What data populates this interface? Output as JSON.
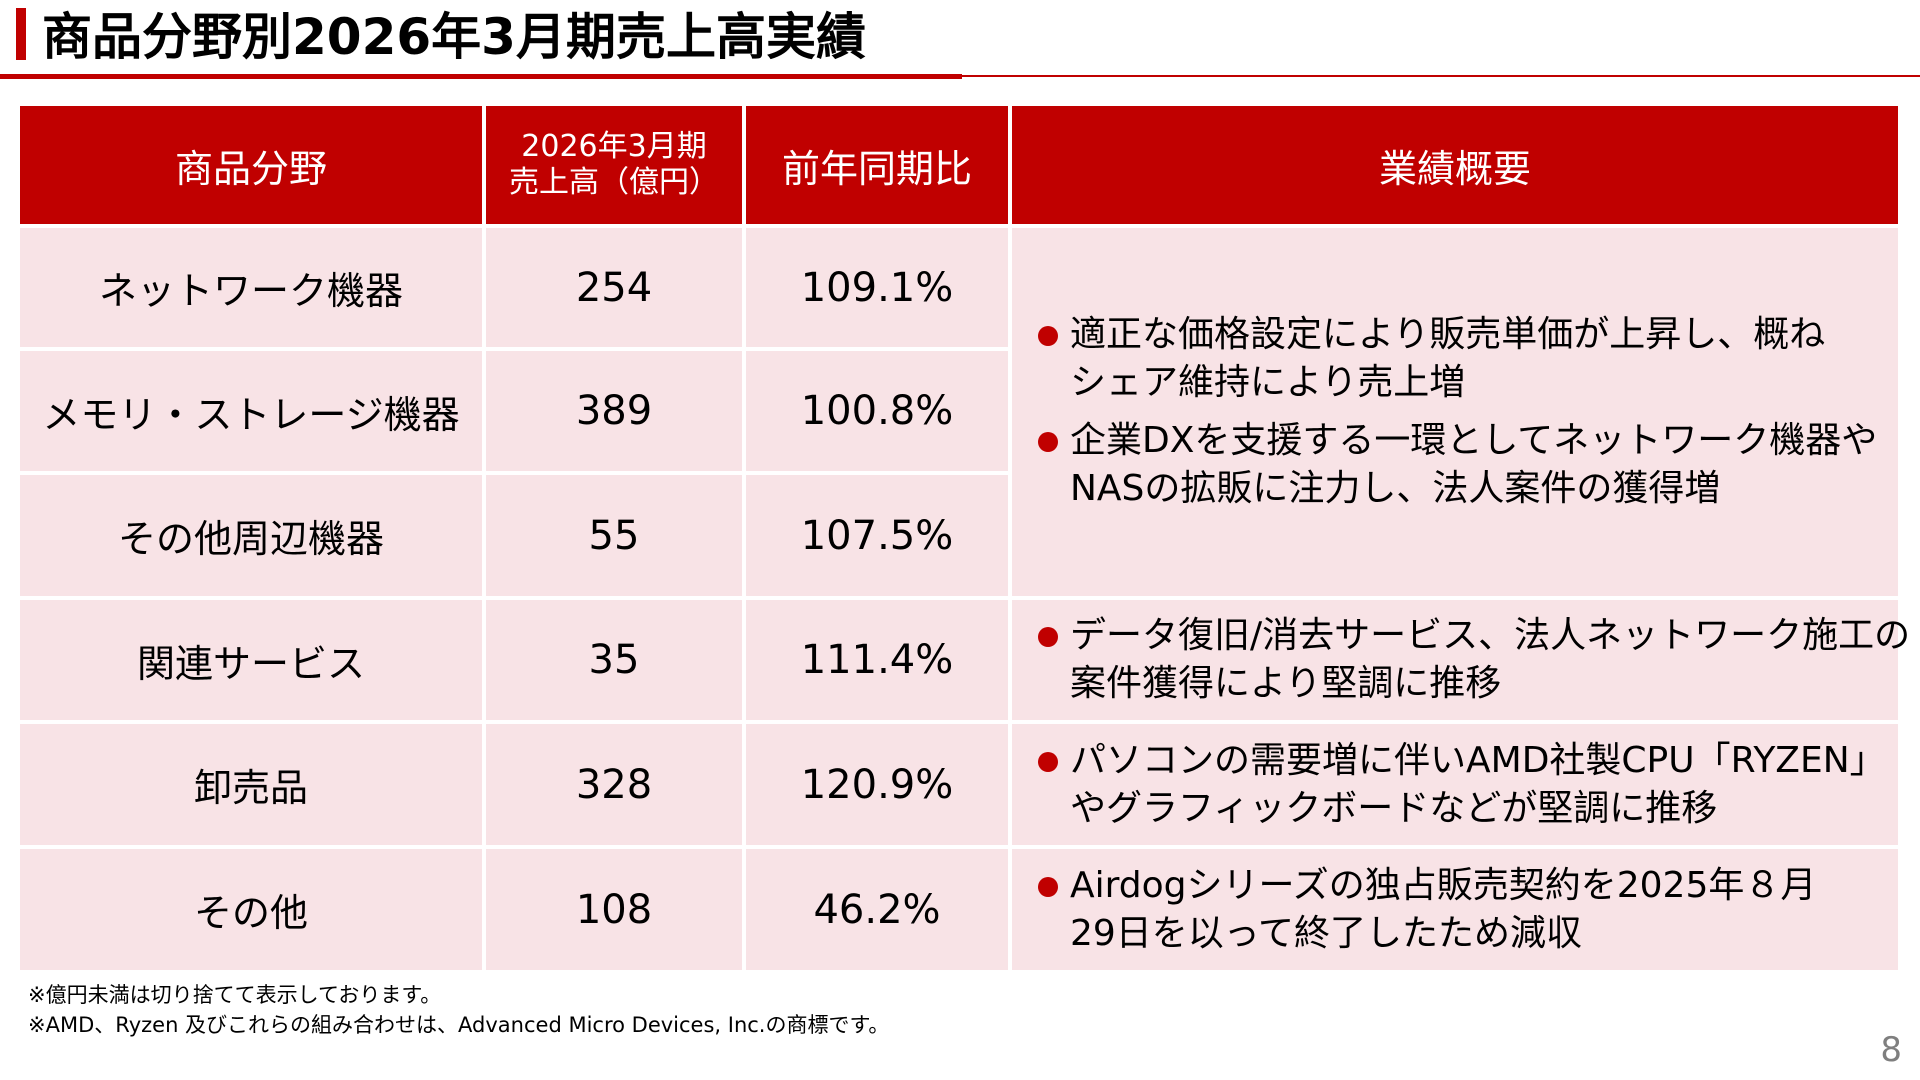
{
  "title": "商品分野別2026年3月期売上高実績",
  "table": {
    "headers": {
      "category": "商品分野",
      "sales_line1": "2026年3月期",
      "sales_line2": "売上高（億円）",
      "yoy": "前年同期比",
      "summary": "業績概要"
    },
    "rows": [
      {
        "category": "ネットワーク機器",
        "sales": "254",
        "yoy": "109.1%"
      },
      {
        "category": "メモリ・ストレージ機器",
        "sales": "389",
        "yoy": "100.8%"
      },
      {
        "category": "その他周辺機器",
        "sales": "55",
        "yoy": "107.5%"
      },
      {
        "category": "関連サービス",
        "sales": "35",
        "yoy": "111.4%"
      },
      {
        "category": "卸売品",
        "sales": "328",
        "yoy": "120.9%"
      },
      {
        "category": "その他",
        "sales": "108",
        "yoy": "46.2%"
      }
    ],
    "summaries": [
      {
        "bullets": [
          {
            "line1": "適正な価格設定により販売単価が上昇し、概ね",
            "line2": "シェア維持により売上増"
          },
          {
            "line1": "企業DXを支援する一環としてネットワーク機器や",
            "line2": "NASの拡販に注力し、法人案件の獲得増"
          }
        ]
      },
      {
        "bullets": [
          {
            "line1": "データ復旧/消去サービス、法人ネットワーク施工の",
            "line2": "案件獲得により堅調に推移"
          }
        ]
      },
      {
        "bullets": [
          {
            "line1": "パソコンの需要増に伴いAMD社製CPU「RYZEN」",
            "line2": "やグラフィックボードなどが堅調に推移"
          }
        ]
      },
      {
        "bullets": [
          {
            "line1": "Airdogシリーズの独占販売契約を2025年８月",
            "line2": "29日を以って終了したため減収"
          }
        ]
      }
    ]
  },
  "footnotes": [
    "※億円未満は切り捨てて表示しております。",
    "※AMD、Ryzen 及びこれらの組み合わせは、Advanced Micro Devices, Inc.の商標です。"
  ],
  "page_number": "8",
  "colors": {
    "accent": "#c00000",
    "body_cell": "#f8e3e6",
    "page_number": "#7f7f7f"
  }
}
